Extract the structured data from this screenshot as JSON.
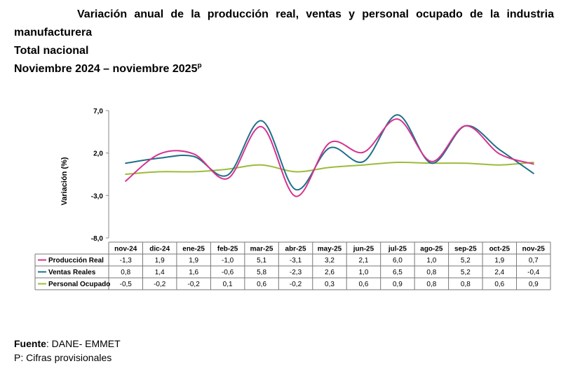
{
  "title": {
    "line1": "Variación anual de la producción real, ventas y personal ocupado de la industria",
    "line2": "manufacturera",
    "line3": "Total nacional",
    "line4": "Noviembre 2024 – noviembre 2025",
    "line4_sup": "p"
  },
  "chart_data": {
    "type": "line",
    "ylabel": "Variación (%)",
    "ylim": [
      -8.0,
      7.0
    ],
    "yticks": [
      "7,0",
      "2,0",
      "-3,0",
      "-8,0"
    ],
    "ytick_values": [
      7.0,
      2.0,
      -3.0,
      -8.0
    ],
    "categories": [
      "nov-24",
      "dic-24",
      "ene-25",
      "feb-25",
      "mar-25",
      "abr-25",
      "may-25",
      "jun-25",
      "jul-25",
      "ago-25",
      "sep-25",
      "oct-25",
      "nov-25"
    ],
    "series": [
      {
        "name": "Producción Real",
        "color": "#d6338f",
        "values": [
          -1.3,
          1.9,
          1.9,
          -1.0,
          5.1,
          -3.1,
          3.2,
          2.1,
          6.0,
          1.0,
          5.2,
          1.9,
          0.7
        ],
        "labels": [
          "-1,3",
          "1,9",
          "1,9",
          "-1,0",
          "5,1",
          "-3,1",
          "3,2",
          "2,1",
          "6,0",
          "1,0",
          "5,2",
          "1,9",
          "0,7"
        ]
      },
      {
        "name": "Ventas Reales",
        "color": "#1f6f8b",
        "values": [
          0.8,
          1.4,
          1.6,
          -0.6,
          5.8,
          -2.3,
          2.6,
          1.0,
          6.5,
          0.8,
          5.2,
          2.4,
          -0.4
        ],
        "labels": [
          "0,8",
          "1,4",
          "1,6",
          "-0,6",
          "5,8",
          "-2,3",
          "2,6",
          "1,0",
          "6,5",
          "0,8",
          "5,2",
          "2,4",
          "-0,4"
        ]
      },
      {
        "name": "Personal Ocupado",
        "color": "#9bbb3b",
        "values": [
          -0.5,
          -0.2,
          -0.2,
          0.1,
          0.6,
          -0.2,
          0.3,
          0.6,
          0.9,
          0.8,
          0.8,
          0.6,
          0.9
        ],
        "labels": [
          "-0,5",
          "-0,2",
          "-0,2",
          "0,1",
          "0,6",
          "-0,2",
          "0,3",
          "0,6",
          "0,9",
          "0,8",
          "0,8",
          "0,6",
          "0,9"
        ]
      }
    ]
  },
  "footer": {
    "source_label": "Fuente",
    "source_text": ": DANE- EMMET",
    "note": "P: Cifras provisionales"
  }
}
